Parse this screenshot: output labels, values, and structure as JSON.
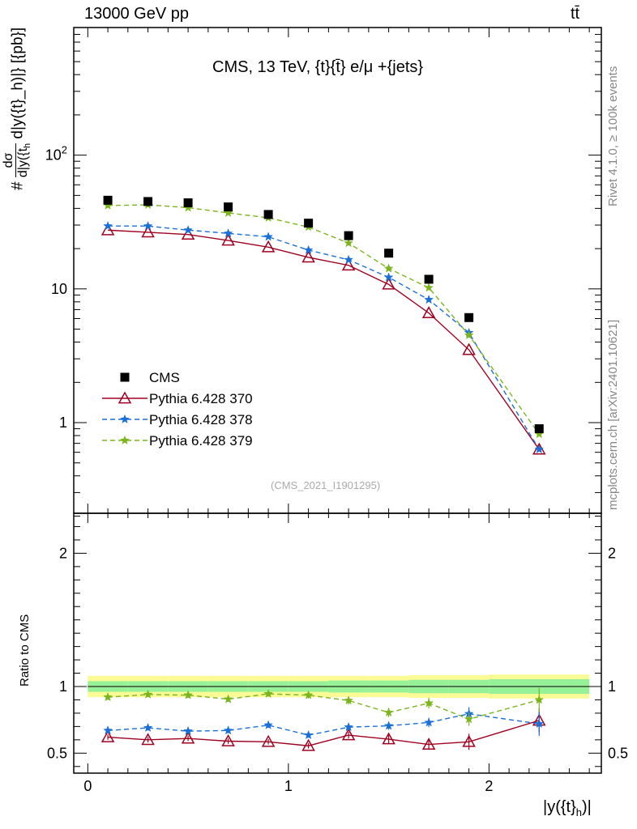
{
  "header": {
    "energy_label": "13000 GeV pp",
    "process_label": "tt̄"
  },
  "side": {
    "rivet_label": "Rivet 4.1.0, ≥ 100k events",
    "source_label": "mcplots.cern.ch [arXiv:2401.10621]"
  },
  "watermark": "(CMS_2021_I1901295)",
  "chart_data": {
    "type": "scatter",
    "title": "CMS, 13 TeV, {t}{t̄} e/μ +{jets}",
    "ylabel": "d|y({t}_h)|} [{pb}]",
    "ylabel_prefix": "#",
    "ylabel_frac_num": "dσ",
    "ylabel_frac_den": "d|y({t",
    "ylabel_sub": "h",
    "xlabel": "|y({t}",
    "xlabel_sub": "h",
    "xlabel_end": ")|",
    "ratio_ylabel": "Ratio to CMS",
    "xlim": [
      -0.07,
      2.56
    ],
    "ylim": [
      0.21,
      900
    ],
    "ratio_ylim": [
      0.35,
      2.3
    ],
    "x_ticks": [
      0,
      1,
      2
    ],
    "y_ticks": [
      {
        "value": 1,
        "label": "1"
      },
      {
        "value": 10,
        "label": "10"
      },
      {
        "value": 100,
        "label": "10",
        "sup": "2"
      }
    ],
    "ratio_ticks": [
      {
        "value": 0.5,
        "label": "0.5"
      },
      {
        "value": 1,
        "label": "1"
      },
      {
        "value": 2,
        "label": "2"
      }
    ],
    "x": [
      0.1,
      0.3,
      0.5,
      0.7,
      0.9,
      1.1,
      1.3,
      1.5,
      1.7,
      1.9,
      2.25
    ],
    "data": {
      "name": "CMS",
      "values": [
        46,
        45,
        44,
        41,
        36,
        31,
        25,
        18.5,
        11.8,
        6.1,
        0.9
      ],
      "band_edges": [
        0,
        0.2,
        0.4,
        0.6,
        0.8,
        1.0,
        1.2,
        1.4,
        1.6,
        1.8,
        2.0,
        2.5
      ],
      "band_stat": [
        0.04,
        0.04,
        0.04,
        0.04,
        0.04,
        0.04,
        0.045,
        0.045,
        0.05,
        0.05,
        0.055
      ],
      "band_total": [
        0.08,
        0.08,
        0.08,
        0.08,
        0.08,
        0.08,
        0.08,
        0.08,
        0.085,
        0.085,
        0.09
      ]
    },
    "series": [
      {
        "name": "Pythia 6.428 370",
        "color": "#a00020",
        "marker": "triangle",
        "dash": "",
        "values": [
          27.5,
          26.5,
          25.5,
          23,
          20.5,
          17.2,
          15.0,
          10.8,
          6.6,
          3.5,
          0.63
        ],
        "ratio": [
          0.62,
          0.6,
          0.61,
          0.59,
          0.585,
          0.555,
          0.635,
          0.605,
          0.565,
          0.585,
          0.745
        ],
        "ratio_err": [
          0.02,
          0.02,
          0.02,
          0.02,
          0.02,
          0.02,
          0.025,
          0.03,
          0.04,
          0.06,
          0.09
        ]
      },
      {
        "name": "Pythia 6.428 378",
        "color": "#1a6fd6",
        "marker": "star",
        "dash": "6,4",
        "values": [
          29.5,
          29.5,
          27.5,
          26,
          24.5,
          19.5,
          16.5,
          12.2,
          8.3,
          4.7,
          0.63
        ],
        "ratio": [
          0.67,
          0.69,
          0.665,
          0.67,
          0.71,
          0.635,
          0.695,
          0.705,
          0.73,
          0.795,
          0.72
        ],
        "ratio_err": [
          0.02,
          0.02,
          0.02,
          0.02,
          0.02,
          0.02,
          0.025,
          0.03,
          0.035,
          0.05,
          0.09
        ]
      },
      {
        "name": "Pythia 6.428 379",
        "color": "#7ab51d",
        "marker": "star",
        "dash": "6,4",
        "values": [
          42,
          42.5,
          40.5,
          37,
          34,
          29,
          22,
          14.2,
          10.2,
          4.5,
          0.82
        ],
        "ratio": [
          0.92,
          0.94,
          0.935,
          0.905,
          0.945,
          0.935,
          0.895,
          0.805,
          0.875,
          0.755,
          0.9
        ],
        "ratio_err": [
          0.02,
          0.02,
          0.02,
          0.02,
          0.02,
          0.025,
          0.03,
          0.035,
          0.04,
          0.05,
          0.09
        ]
      }
    ],
    "legend_position": "lower-left"
  }
}
